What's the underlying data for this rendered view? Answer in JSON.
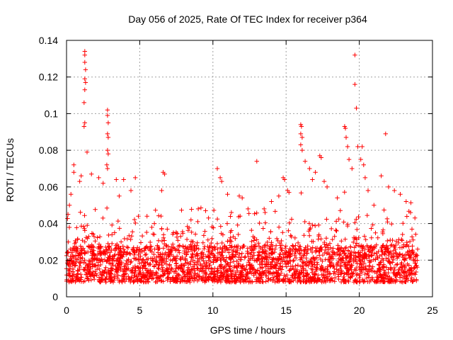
{
  "chart_data": {
    "type": "scatter",
    "title": "Day 056 of 2025, Rate Of TEC Index for receiver p364",
    "xlabel": "GPS time / hours",
    "ylabel": "ROTI / TECUs",
    "xlim": [
      0,
      25
    ],
    "ylim": [
      0,
      0.14
    ],
    "x_ticks": [
      0,
      5,
      10,
      15,
      20,
      25
    ],
    "x_tick_labels": [
      "0",
      "5",
      "10",
      "15",
      "20",
      "25"
    ],
    "y_ticks": [
      0,
      0.02,
      0.04,
      0.06,
      0.08,
      0.1,
      0.12,
      0.14
    ],
    "y_tick_labels": [
      "0",
      "0.02",
      "0.04",
      "0.06",
      "0.08",
      "0.1",
      "0.12",
      "0.14"
    ],
    "grid": true,
    "marker": "+",
    "color": "#ff0000",
    "series": [
      {
        "name": "ROTI",
        "baseline_band": [
          0.005,
          0.025
        ],
        "dense_sampling_per_hour": 420,
        "points": [
          [
            1.25,
            0.134
          ],
          [
            1.25,
            0.132
          ],
          [
            1.25,
            0.128
          ],
          [
            1.3,
            0.124
          ],
          [
            1.25,
            0.119
          ],
          [
            1.3,
            0.117
          ],
          [
            1.25,
            0.113
          ],
          [
            1.2,
            0.106
          ],
          [
            1.25,
            0.095
          ],
          [
            1.2,
            0.093
          ],
          [
            1.4,
            0.079
          ],
          [
            2.8,
            0.102
          ],
          [
            2.8,
            0.099
          ],
          [
            2.85,
            0.095
          ],
          [
            2.8,
            0.089
          ],
          [
            2.85,
            0.087
          ],
          [
            2.8,
            0.08
          ],
          [
            2.85,
            0.078
          ],
          [
            2.75,
            0.072
          ],
          [
            2.8,
            0.07
          ],
          [
            0.5,
            0.072
          ],
          [
            0.5,
            0.068
          ],
          [
            0.3,
            0.056
          ],
          [
            0.2,
            0.05
          ],
          [
            0.1,
            0.045
          ],
          [
            0.9,
            0.063
          ],
          [
            1.0,
            0.066
          ],
          [
            1.7,
            0.067
          ],
          [
            2.2,
            0.065
          ],
          [
            2.5,
            0.062
          ],
          [
            3.4,
            0.064
          ],
          [
            3.9,
            0.064
          ],
          [
            4.4,
            0.058
          ],
          [
            4.7,
            0.065
          ],
          [
            3.6,
            0.055
          ],
          [
            5.5,
            0.044
          ],
          [
            6.0,
            0.04
          ],
          [
            6.6,
            0.068
          ],
          [
            6.7,
            0.067
          ],
          [
            6.5,
            0.058
          ],
          [
            7.3,
            0.035
          ],
          [
            7.8,
            0.033
          ],
          [
            8.5,
            0.042
          ],
          [
            9.0,
            0.048
          ],
          [
            9.5,
            0.047
          ],
          [
            9.7,
            0.043
          ],
          [
            10.3,
            0.07
          ],
          [
            10.5,
            0.065
          ],
          [
            10.6,
            0.063
          ],
          [
            11.0,
            0.056
          ],
          [
            11.8,
            0.055
          ],
          [
            12.0,
            0.054
          ],
          [
            12.4,
            0.048
          ],
          [
            13.0,
            0.074
          ],
          [
            13.5,
            0.048
          ],
          [
            14.0,
            0.052
          ],
          [
            14.5,
            0.055
          ],
          [
            14.8,
            0.065
          ],
          [
            14.9,
            0.064
          ],
          [
            15.1,
            0.058
          ],
          [
            15.2,
            0.057
          ],
          [
            16.0,
            0.094
          ],
          [
            16.05,
            0.093
          ],
          [
            16.0,
            0.089
          ],
          [
            16.1,
            0.087
          ],
          [
            16.0,
            0.083
          ],
          [
            16.1,
            0.08
          ],
          [
            16.3,
            0.074
          ],
          [
            16.6,
            0.07
          ],
          [
            16.8,
            0.064
          ],
          [
            17.0,
            0.068
          ],
          [
            17.3,
            0.077
          ],
          [
            17.4,
            0.076
          ],
          [
            17.6,
            0.063
          ],
          [
            17.8,
            0.06
          ],
          [
            18.5,
            0.054
          ],
          [
            19.0,
            0.093
          ],
          [
            19.05,
            0.092
          ],
          [
            19.1,
            0.087
          ],
          [
            19.2,
            0.082
          ],
          [
            19.3,
            0.075
          ],
          [
            19.5,
            0.07
          ],
          [
            19.7,
            0.132
          ],
          [
            19.7,
            0.116
          ],
          [
            19.8,
            0.103
          ],
          [
            19.9,
            0.082
          ],
          [
            20.1,
            0.075
          ],
          [
            20.2,
            0.082
          ],
          [
            20.3,
            0.072
          ],
          [
            20.4,
            0.065
          ],
          [
            20.6,
            0.058
          ],
          [
            21.0,
            0.05
          ],
          [
            21.5,
            0.066
          ],
          [
            21.8,
            0.089
          ],
          [
            22.0,
            0.06
          ],
          [
            22.4,
            0.058
          ],
          [
            22.8,
            0.056
          ],
          [
            23.2,
            0.052
          ],
          [
            23.5,
            0.046
          ],
          [
            23.8,
            0.043
          ]
        ]
      }
    ]
  }
}
